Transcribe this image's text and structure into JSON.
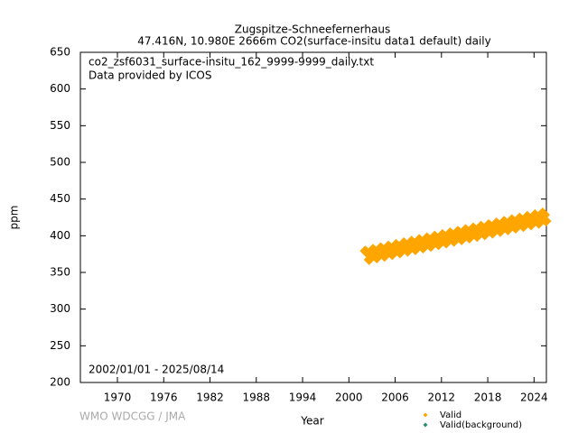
{
  "chart_data": {
    "type": "scatter",
    "title": "Zugspitze-Schneefernerhaus",
    "subtitle": "47.416N, 10.980E 2666m     CO2(surface-insitu data1 default) daily",
    "annotations": [
      "co2_zsf6031_surface-insitu_162_9999-9999_daily.txt",
      "Data provided by ICOS",
      "2002/01/01 - 2025/08/14"
    ],
    "credit": "WMO WDCGG / JMA",
    "x_label": "Year",
    "y_label": "ppm",
    "xlim": [
      1965.2,
      2025.6
    ],
    "xticks": [
      1970,
      1976,
      1982,
      1988,
      1994,
      2000,
      2006,
      2012,
      2018,
      2024
    ],
    "ylim": [
      200,
      650
    ],
    "yticks": [
      200,
      250,
      300,
      350,
      400,
      450,
      500,
      550,
      600,
      650
    ],
    "series": [
      {
        "name": "Valid",
        "color": "#ffa500",
        "x": [
          2002.12,
          2002.37,
          2002.62,
          2002.87,
          2003.12,
          2003.37,
          2003.62,
          2003.87,
          2004.12,
          2004.37,
          2004.62,
          2004.87,
          2005.12,
          2005.37,
          2005.62,
          2005.87,
          2006.12,
          2006.37,
          2006.62,
          2006.87,
          2007.12,
          2007.37,
          2007.62,
          2007.87,
          2008.12,
          2008.37,
          2008.62,
          2008.87,
          2009.12,
          2009.37,
          2009.62,
          2009.87,
          2010.12,
          2010.37,
          2010.62,
          2010.87,
          2011.12,
          2011.37,
          2011.62,
          2011.87,
          2012.12,
          2012.37,
          2012.62,
          2012.87,
          2013.12,
          2013.37,
          2013.62,
          2013.87,
          2014.12,
          2014.37,
          2014.62,
          2014.87,
          2015.12,
          2015.37,
          2015.62,
          2015.87,
          2016.12,
          2016.37,
          2016.62,
          2016.87,
          2017.12,
          2017.37,
          2017.62,
          2017.87,
          2018.12,
          2018.37,
          2018.62,
          2018.87,
          2019.12,
          2019.37,
          2019.62,
          2019.87,
          2020.12,
          2020.37,
          2020.62,
          2020.87,
          2021.12,
          2021.37,
          2021.62,
          2021.87,
          2022.12,
          2022.37,
          2022.62,
          2022.87,
          2023.12,
          2023.37,
          2023.62,
          2023.87,
          2024.12,
          2024.37,
          2024.62,
          2024.87,
          2025.12,
          2025.37,
          2025.55
        ],
        "values": [
          379.3,
          376.8,
          367.4,
          375.0,
          381.6,
          379.1,
          369.7,
          377.3,
          383.8,
          381.3,
          371.9,
          379.5,
          386.1,
          383.6,
          374.2,
          381.8,
          388.3,
          385.8,
          376.4,
          384.0,
          390.6,
          388.1,
          378.7,
          386.3,
          392.8,
          390.3,
          380.9,
          388.5,
          395.1,
          392.6,
          383.2,
          390.8,
          397.3,
          394.8,
          385.4,
          393.0,
          399.6,
          397.1,
          387.7,
          395.3,
          401.8,
          399.3,
          389.9,
          397.5,
          404.1,
          401.6,
          392.2,
          399.8,
          406.3,
          403.8,
          394.4,
          402.0,
          408.6,
          406.1,
          396.7,
          404.3,
          410.8,
          408.3,
          398.9,
          406.5,
          413.1,
          410.6,
          401.2,
          408.8,
          415.3,
          412.8,
          403.4,
          411.0,
          417.6,
          415.1,
          405.7,
          413.3,
          419.8,
          417.3,
          407.9,
          415.5,
          422.1,
          419.6,
          410.2,
          417.8,
          424.3,
          421.8,
          412.4,
          420.0,
          426.6,
          424.1,
          414.7,
          422.3,
          428.8,
          426.3,
          416.9,
          424.5,
          431.1,
          428.6,
          420.0
        ]
      },
      {
        "name": "Valid(background)",
        "color": "#2e8b74",
        "x": [],
        "values": []
      }
    ]
  }
}
